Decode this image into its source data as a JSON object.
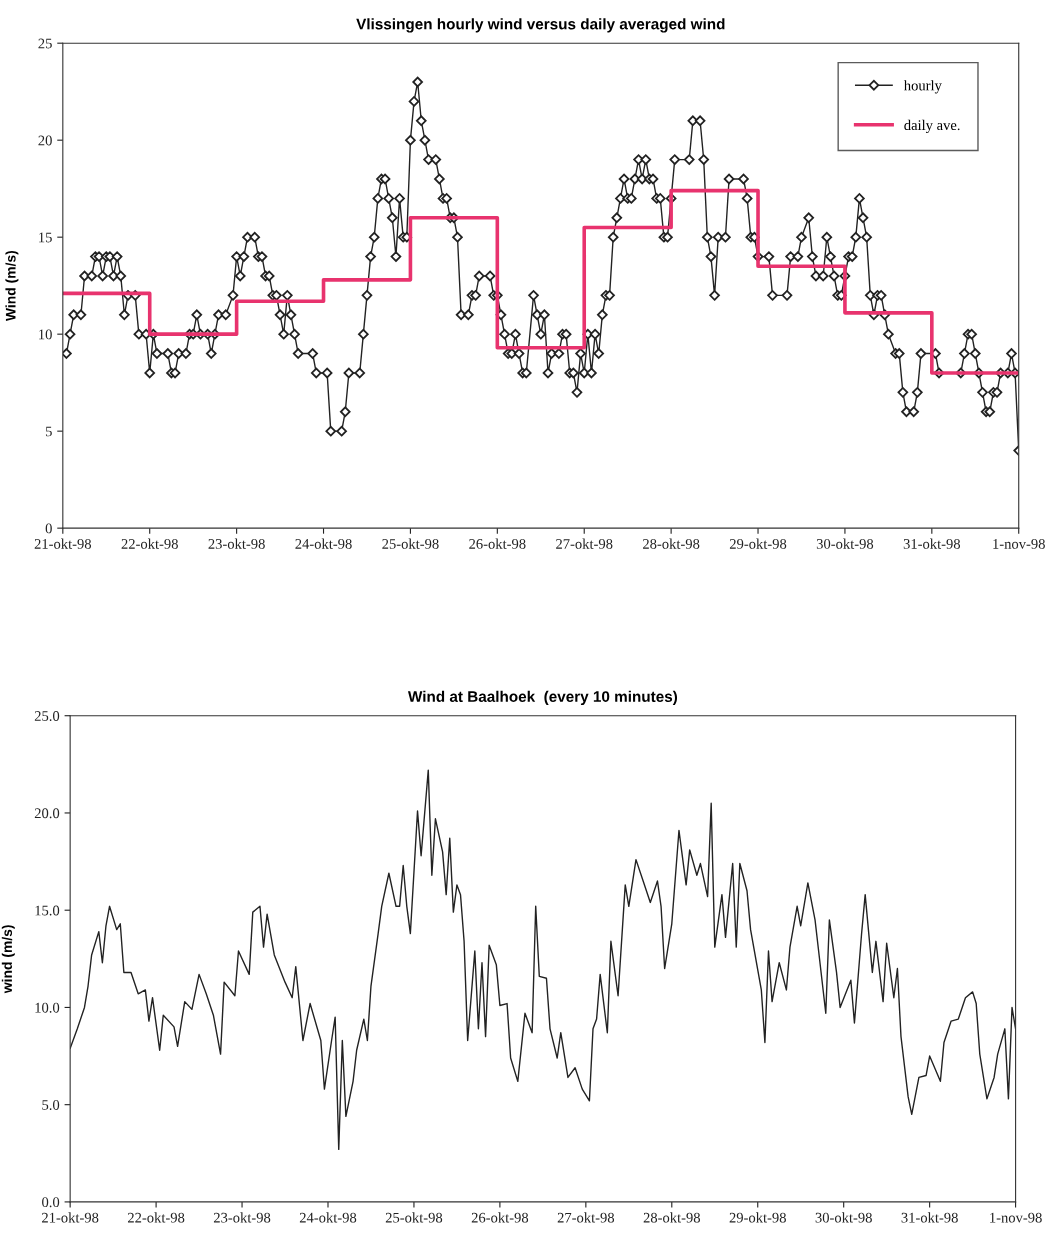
{
  "chart_data": [
    {
      "type": "line",
      "title": "Vlissingen hourly wind versus daily averaged wind",
      "ylabel": "Wind (m/s)",
      "xlim": [
        "1998-10-21",
        "1998-11-01"
      ],
      "xticks": [
        {
          "value": "1998-10-21",
          "label": "21-okt-98"
        },
        {
          "value": "1998-10-22",
          "label": "22-okt-98"
        },
        {
          "value": "1998-10-23",
          "label": "23-okt-98"
        },
        {
          "value": "1998-10-24",
          "label": "24-okt-98"
        },
        {
          "value": "1998-10-25",
          "label": "25-okt-98"
        },
        {
          "value": "1998-10-26",
          "label": "26-okt-98"
        },
        {
          "value": "1998-10-27",
          "label": "27-okt-98"
        },
        {
          "value": "1998-10-28",
          "label": "28-okt-98"
        },
        {
          "value": "1998-10-29",
          "label": "29-okt-98"
        },
        {
          "value": "1998-10-30",
          "label": "30-okt-98"
        },
        {
          "value": "1998-10-31",
          "label": "31-okt-98"
        },
        {
          "value": "1998-11-01",
          "label": "1-nov-98"
        }
      ],
      "ylim": [
        0,
        25
      ],
      "yticks": [
        0,
        5,
        10,
        15,
        20,
        25
      ],
      "legend": "top right",
      "series": [
        {
          "name": "hourly",
          "marker": "diamond",
          "color": "#222222",
          "x": [
            "1998-10-21T01:00",
            "1998-10-21T02:00",
            "1998-10-21T03:00",
            "1998-10-21T05:00",
            "1998-10-21T06:00",
            "1998-10-21T08:00",
            "1998-10-21T09:00",
            "1998-10-21T10:00",
            "1998-10-21T11:00",
            "1998-10-21T12:00",
            "1998-10-21T13:00",
            "1998-10-21T14:00",
            "1998-10-21T15:00",
            "1998-10-21T16:00",
            "1998-10-21T17:00",
            "1998-10-21T18:00",
            "1998-10-21T20:00",
            "1998-10-21T21:00",
            "1998-10-21T23:00",
            "1998-10-22T00:00",
            "1998-10-22T01:00",
            "1998-10-22T02:00",
            "1998-10-22T05:00",
            "1998-10-22T06:00",
            "1998-10-22T07:00",
            "1998-10-22T08:00",
            "1998-10-22T10:00",
            "1998-10-22T11:00",
            "1998-10-22T12:00",
            "1998-10-22T13:00",
            "1998-10-22T14:00",
            "1998-10-22T16:00",
            "1998-10-22T17:00",
            "1998-10-22T18:00",
            "1998-10-22T19:00",
            "1998-10-22T21:00",
            "1998-10-22T23:00",
            "1998-10-23T00:00",
            "1998-10-23T01:00",
            "1998-10-23T02:00",
            "1998-10-23T03:00",
            "1998-10-23T05:00",
            "1998-10-23T06:00",
            "1998-10-23T07:00",
            "1998-10-23T08:00",
            "1998-10-23T09:00",
            "1998-10-23T10:00",
            "1998-10-23T11:00",
            "1998-10-23T12:00",
            "1998-10-23T13:00",
            "1998-10-23T14:00",
            "1998-10-23T15:00",
            "1998-10-23T16:00",
            "1998-10-23T17:00",
            "1998-10-23T21:00",
            "1998-10-23T22:00",
            "1998-10-24T01:00",
            "1998-10-24T02:00",
            "1998-10-24T05:00",
            "1998-10-24T06:00",
            "1998-10-24T07:00",
            "1998-10-24T10:00",
            "1998-10-24T11:00",
            "1998-10-24T12:00",
            "1998-10-24T13:00",
            "1998-10-24T14:00",
            "1998-10-24T15:00",
            "1998-10-24T16:00",
            "1998-10-24T17:00",
            "1998-10-24T18:00",
            "1998-10-24T19:00",
            "1998-10-24T20:00",
            "1998-10-24T21:00",
            "1998-10-24T22:00",
            "1998-10-24T23:00",
            "1998-10-25T00:00",
            "1998-10-25T01:00",
            "1998-10-25T02:00",
            "1998-10-25T03:00",
            "1998-10-25T04:00",
            "1998-10-25T05:00",
            "1998-10-25T07:00",
            "1998-10-25T08:00",
            "1998-10-25T09:00",
            "1998-10-25T10:00",
            "1998-10-25T11:00",
            "1998-10-25T12:00",
            "1998-10-25T13:00",
            "1998-10-25T14:00",
            "1998-10-25T16:00",
            "1998-10-25T17:00",
            "1998-10-25T18:00",
            "1998-10-25T19:00",
            "1998-10-25T22:00",
            "1998-10-25T23:00",
            "1998-10-26T00:00",
            "1998-10-26T01:00",
            "1998-10-26T02:00",
            "1998-10-26T03:00",
            "1998-10-26T04:00",
            "1998-10-26T05:00",
            "1998-10-26T06:00",
            "1998-10-26T07:00",
            "1998-10-26T08:00",
            "1998-10-26T10:00",
            "1998-10-26T11:00",
            "1998-10-26T12:00",
            "1998-10-26T13:00",
            "1998-10-26T14:00",
            "1998-10-26T15:00",
            "1998-10-26T17:00",
            "1998-10-26T18:00",
            "1998-10-26T19:00",
            "1998-10-26T20:00",
            "1998-10-26T21:00",
            "1998-10-26T22:00",
            "1998-10-26T23:00",
            "1998-10-27T00:00",
            "1998-10-27T01:00",
            "1998-10-27T02:00",
            "1998-10-27T03:00",
            "1998-10-27T04:00",
            "1998-10-27T05:00",
            "1998-10-27T06:00",
            "1998-10-27T07:00",
            "1998-10-27T08:00",
            "1998-10-27T09:00",
            "1998-10-27T10:00",
            "1998-10-27T11:00",
            "1998-10-27T12:00",
            "1998-10-27T13:00",
            "1998-10-27T14:00",
            "1998-10-27T15:00",
            "1998-10-27T16:00",
            "1998-10-27T17:00",
            "1998-10-27T18:00",
            "1998-10-27T19:00",
            "1998-10-27T20:00",
            "1998-10-27T21:00",
            "1998-10-27T22:00",
            "1998-10-27T23:00",
            "1998-10-28T00:00",
            "1998-10-28T01:00",
            "1998-10-28T05:00",
            "1998-10-28T06:00",
            "1998-10-28T08:00",
            "1998-10-28T09:00",
            "1998-10-28T10:00",
            "1998-10-28T11:00",
            "1998-10-28T12:00",
            "1998-10-28T13:00",
            "1998-10-28T15:00",
            "1998-10-28T16:00",
            "1998-10-28T20:00",
            "1998-10-28T21:00",
            "1998-10-28T22:00",
            "1998-10-28T23:00",
            "1998-10-29T00:00",
            "1998-10-29T03:00",
            "1998-10-29T04:00",
            "1998-10-29T08:00",
            "1998-10-29T09:00",
            "1998-10-29T11:00",
            "1998-10-29T12:00",
            "1998-10-29T14:00",
            "1998-10-29T15:00",
            "1998-10-29T16:00",
            "1998-10-29T18:00",
            "1998-10-29T19:00",
            "1998-10-29T20:00",
            "1998-10-29T21:00",
            "1998-10-29T22:00",
            "1998-10-29T23:00",
            "1998-10-30T00:00",
            "1998-10-30T01:00",
            "1998-10-30T02:00",
            "1998-10-30T03:00",
            "1998-10-30T04:00",
            "1998-10-30T05:00",
            "1998-10-30T06:00",
            "1998-10-30T07:00",
            "1998-10-30T08:00",
            "1998-10-30T09:00",
            "1998-10-30T10:00",
            "1998-10-30T11:00",
            "1998-10-30T12:00",
            "1998-10-30T14:00",
            "1998-10-30T15:00",
            "1998-10-30T16:00",
            "1998-10-30T17:00",
            "1998-10-30T19:00",
            "1998-10-30T20:00",
            "1998-10-30T21:00",
            "1998-10-31T01:00",
            "1998-10-31T02:00",
            "1998-10-31T08:00",
            "1998-10-31T09:00",
            "1998-10-31T10:00",
            "1998-10-31T11:00",
            "1998-10-31T12:00",
            "1998-10-31T13:00",
            "1998-10-31T14:00",
            "1998-10-31T15:00",
            "1998-10-31T16:00",
            "1998-10-31T17:00",
            "1998-10-31T18:00",
            "1998-10-31T19:00",
            "1998-10-31T21:00",
            "1998-10-31T22:00",
            "1998-10-31T23:00",
            "1998-11-01T00:00"
          ],
          "values": [
            9,
            10,
            11,
            11,
            13,
            13,
            14,
            14,
            13,
            14,
            14,
            13,
            14,
            13,
            11,
            12,
            12,
            10,
            10,
            8,
            10,
            9,
            9,
            8,
            8,
            9,
            9,
            10,
            10,
            11,
            10,
            10,
            9,
            10,
            11,
            11,
            12,
            14,
            13,
            14,
            15,
            15,
            14,
            14,
            13,
            13,
            12,
            12,
            11,
            10,
            12,
            11,
            10,
            9,
            9,
            8,
            8,
            5,
            5,
            6,
            8,
            8,
            10,
            12,
            14,
            15,
            17,
            18,
            18,
            17,
            16,
            14,
            17,
            15,
            15,
            20,
            22,
            23,
            21,
            20,
            19,
            19,
            18,
            17,
            17,
            16,
            16,
            15,
            11,
            11,
            12,
            12,
            13,
            13,
            12,
            12,
            11,
            10,
            9,
            9,
            10,
            9,
            8,
            8,
            12,
            11,
            10,
            11,
            8,
            9,
            9,
            10,
            10,
            8,
            8,
            7,
            9,
            8,
            10,
            8,
            10,
            9,
            11,
            12,
            12,
            15,
            16,
            17,
            18,
            17,
            17,
            18,
            19,
            18,
            19,
            18,
            18,
            17,
            17,
            15,
            15,
            17,
            19,
            19,
            21,
            21,
            19,
            15,
            14,
            12,
            15,
            15,
            18,
            18,
            17,
            15,
            15,
            14,
            14,
            12,
            12,
            14,
            14,
            15,
            16,
            14,
            13,
            13,
            15,
            14,
            13,
            12,
            12,
            13,
            14,
            14,
            15,
            17,
            16,
            15,
            12,
            11,
            12,
            12,
            11,
            10,
            9,
            9,
            7,
            6,
            6,
            7,
            9,
            9,
            8,
            8,
            9,
            10,
            10,
            9,
            8,
            7,
            6,
            6,
            7,
            7,
            8,
            8,
            9,
            8,
            4
          ]
        },
        {
          "name": "daily ave.",
          "type": "step",
          "color": "#e8336e",
          "x": [
            "1998-10-21",
            "1998-10-22",
            "1998-10-23",
            "1998-10-24",
            "1998-10-25",
            "1998-10-26",
            "1998-10-27",
            "1998-10-28",
            "1998-10-29",
            "1998-10-30",
            "1998-10-31",
            "1998-11-01"
          ],
          "values": [
            12.1,
            10.0,
            11.7,
            12.8,
            16.0,
            9.3,
            15.5,
            17.4,
            13.5,
            11.1,
            8.0,
            8.0
          ]
        }
      ]
    },
    {
      "type": "line",
      "title": "Wind at Baalhoek  (every 10 minutes)",
      "ylabel": "wind (m/s)",
      "xlim": [
        "1998-10-21",
        "1998-11-01"
      ],
      "xticks": [
        {
          "value": "1998-10-21",
          "label": "21-okt-98"
        },
        {
          "value": "1998-10-22",
          "label": "22-okt-98"
        },
        {
          "value": "1998-10-23",
          "label": "23-okt-98"
        },
        {
          "value": "1998-10-24",
          "label": "24-okt-98"
        },
        {
          "value": "1998-10-25",
          "label": "25-okt-98"
        },
        {
          "value": "1998-10-26",
          "label": "26-okt-98"
        },
        {
          "value": "1998-10-27",
          "label": "27-okt-98"
        },
        {
          "value": "1998-10-28",
          "label": "28-okt-98"
        },
        {
          "value": "1998-10-29",
          "label": "29-okt-98"
        },
        {
          "value": "1998-10-30",
          "label": "30-okt-98"
        },
        {
          "value": "1998-10-31",
          "label": "31-okt-98"
        },
        {
          "value": "1998-11-01",
          "label": "1-nov-98"
        }
      ],
      "ylim": [
        0,
        25
      ],
      "yticks": [
        {
          "value": 0,
          "label": "0.0"
        },
        {
          "value": 5,
          "label": "5.0"
        },
        {
          "value": 10,
          "label": "10.0"
        },
        {
          "value": 15,
          "label": "15.0"
        },
        {
          "value": 20,
          "label": "20.0"
        },
        {
          "value": 25,
          "label": "25.0"
        }
      ],
      "series": [
        {
          "color": "#222222",
          "x": [
            "1998-10-21T00:00",
            "1998-10-21T02:00",
            "1998-10-21T04:00",
            "1998-10-21T05:00",
            "1998-10-21T06:00",
            "1998-10-21T08:00",
            "1998-10-21T09:00",
            "1998-10-21T10:00",
            "1998-10-21T11:00",
            "1998-10-21T13:00",
            "1998-10-21T14:00",
            "1998-10-21T15:00",
            "1998-10-21T17:00",
            "1998-10-21T19:00",
            "1998-10-21T21:00",
            "1998-10-21T22:00",
            "1998-10-21T23:00",
            "1998-10-22T01:00",
            "1998-10-22T02:00",
            "1998-10-22T05:00",
            "1998-10-22T06:00",
            "1998-10-22T08:00",
            "1998-10-22T10:00",
            "1998-10-22T12:00",
            "1998-10-22T14:00",
            "1998-10-22T16:00",
            "1998-10-22T18:00",
            "1998-10-22T19:00",
            "1998-10-22T22:00",
            "1998-10-22T23:00",
            "1998-10-23T02:00",
            "1998-10-23T03:00",
            "1998-10-23T05:00",
            "1998-10-23T06:00",
            "1998-10-23T07:00",
            "1998-10-23T09:00",
            "1998-10-23T12:00",
            "1998-10-23T14:00",
            "1998-10-23T15:00",
            "1998-10-23T17:00",
            "1998-10-23T19:00",
            "1998-10-23T22:00",
            "1998-10-23T23:00",
            "1998-10-24T01:00",
            "1998-10-24T02:00",
            "1998-10-24T03:00",
            "1998-10-24T04:00",
            "1998-10-24T05:00",
            "1998-10-24T07:00",
            "1998-10-24T08:00",
            "1998-10-24T10:00",
            "1998-10-24T11:00",
            "1998-10-24T12:00",
            "1998-10-24T14:00",
            "1998-10-24T15:00",
            "1998-10-24T17:00",
            "1998-10-24T19:00",
            "1998-10-24T20:00",
            "1998-10-24T21:00",
            "1998-10-24T22:00",
            "1998-10-24T23:00",
            "1998-10-25T01:00",
            "1998-10-25T02:00",
            "1998-10-25T04:00",
            "1998-10-25T05:00",
            "1998-10-25T06:00",
            "1998-10-25T08:00",
            "1998-10-25T09:00",
            "1998-10-25T10:00",
            "1998-10-25T11:00",
            "1998-10-25T12:00",
            "1998-10-25T13:00",
            "1998-10-25T14:00",
            "1998-10-25T15:00",
            "1998-10-25T17:00",
            "1998-10-25T18:00",
            "1998-10-25T19:00",
            "1998-10-25T20:00",
            "1998-10-25T21:00",
            "1998-10-25T23:00",
            "1998-10-26T00:00",
            "1998-10-26T02:00",
            "1998-10-26T03:00",
            "1998-10-26T05:00",
            "1998-10-26T07:00",
            "1998-10-26T09:00",
            "1998-10-26T10:00",
            "1998-10-26T11:00",
            "1998-10-26T13:00",
            "1998-10-26T14:00",
            "1998-10-26T16:00",
            "1998-10-26T17:00",
            "1998-10-26T19:00",
            "1998-10-26T21:00",
            "1998-10-26T23:00",
            "1998-10-27T01:00",
            "1998-10-27T02:00",
            "1998-10-27T03:00",
            "1998-10-27T04:00",
            "1998-10-27T06:00",
            "1998-10-27T07:00",
            "1998-10-27T09:00",
            "1998-10-27T11:00",
            "1998-10-27T12:00",
            "1998-10-27T14:00",
            "1998-10-27T16:00",
            "1998-10-27T18:00",
            "1998-10-27T20:00",
            "1998-10-27T21:00",
            "1998-10-27T22:00",
            "1998-10-28T00:00",
            "1998-10-28T02:00",
            "1998-10-28T04:00",
            "1998-10-28T05:00",
            "1998-10-28T07:00",
            "1998-10-28T08:00",
            "1998-10-28T10:00",
            "1998-10-28T11:00",
            "1998-10-28T12:00",
            "1998-10-28T14:00",
            "1998-10-28T15:00",
            "1998-10-28T17:00",
            "1998-10-28T18:00",
            "1998-10-28T19:00",
            "1998-10-28T21:00",
            "1998-10-28T22:00",
            "1998-10-29T01:00",
            "1998-10-29T02:00",
            "1998-10-29T03:00",
            "1998-10-29T04:00",
            "1998-10-29T06:00",
            "1998-10-29T08:00",
            "1998-10-29T09:00",
            "1998-10-29T11:00",
            "1998-10-29T12:00",
            "1998-10-29T14:00",
            "1998-10-29T16:00",
            "1998-10-29T17:00",
            "1998-10-29T19:00",
            "1998-10-29T20:00",
            "1998-10-29T22:00",
            "1998-10-29T23:00",
            "1998-10-30T02:00",
            "1998-10-30T03:00",
            "1998-10-30T05:00",
            "1998-10-30T06:00",
            "1998-10-30T08:00",
            "1998-10-30T09:00",
            "1998-10-30T11:00",
            "1998-10-30T12:00",
            "1998-10-30T14:00",
            "1998-10-30T15:00",
            "1998-10-30T16:00",
            "1998-10-30T18:00",
            "1998-10-30T19:00",
            "1998-10-30T21:00",
            "1998-10-30T23:00",
            "1998-10-31T00:00",
            "1998-10-31T03:00",
            "1998-10-31T04:00",
            "1998-10-31T06:00",
            "1998-10-31T08:00",
            "1998-10-31T10:00",
            "1998-10-31T12:00",
            "1998-10-31T13:00",
            "1998-10-31T14:00",
            "1998-10-31T16:00",
            "1998-10-31T18:00",
            "1998-10-31T19:00",
            "1998-10-31T21:00",
            "1998-10-31T22:00",
            "1998-10-31T23:00",
            "1998-11-01T00:00"
          ],
          "values": [
            7.9,
            8.9,
            10.0,
            11.1,
            12.7,
            13.9,
            12.3,
            14.2,
            15.2,
            14.0,
            14.3,
            11.8,
            11.8,
            10.7,
            10.9,
            9.3,
            10.5,
            7.8,
            9.6,
            9.0,
            8.0,
            10.3,
            9.9,
            11.7,
            10.7,
            9.6,
            7.6,
            11.3,
            10.6,
            12.9,
            11.7,
            14.9,
            15.2,
            13.1,
            14.8,
            12.7,
            11.3,
            10.5,
            12.1,
            8.3,
            10.2,
            8.3,
            5.8,
            8.3,
            9.5,
            2.7,
            8.3,
            4.4,
            6.2,
            7.8,
            9.4,
            8.3,
            11.1,
            13.8,
            15.2,
            16.9,
            15.2,
            15.2,
            17.3,
            15.2,
            13.8,
            20.1,
            17.8,
            22.2,
            16.8,
            19.7,
            18.0,
            15.8,
            18.7,
            14.9,
            16.3,
            15.8,
            13.4,
            8.3,
            12.9,
            8.9,
            12.3,
            8.5,
            13.2,
            12.2,
            10.1,
            10.2,
            7.4,
            6.2,
            9.7,
            8.7,
            15.2,
            11.6,
            11.5,
            8.9,
            7.4,
            8.7,
            6.4,
            6.9,
            5.8,
            5.2,
            8.9,
            9.4,
            11.7,
            8.7,
            13.4,
            10.6,
            16.3,
            15.2,
            17.6,
            16.5,
            15.4,
            16.5,
            15.2,
            12.0,
            14.3,
            19.1,
            16.3,
            18.1,
            16.8,
            17.4,
            15.7,
            20.5,
            13.1,
            15.8,
            13.6,
            17.4,
            13.1,
            17.4,
            16.0,
            14.0,
            10.9,
            8.2,
            12.9,
            10.3,
            12.3,
            10.9,
            13.1,
            15.2,
            14.2,
            16.4,
            14.5,
            12.9,
            9.7,
            14.5,
            11.8,
            10.0,
            11.4,
            9.2,
            13.8,
            15.8,
            11.8,
            13.4,
            10.3,
            13.3,
            10.5,
            12.0,
            8.5,
            5.4,
            4.5,
            6.4,
            6.5,
            7.5,
            6.2,
            8.2,
            9.3,
            9.4,
            10.5,
            10.8,
            10.2,
            7.6,
            5.3,
            6.4,
            7.6,
            8.9,
            5.3,
            10.0,
            8.9
          ]
        }
      ]
    }
  ]
}
